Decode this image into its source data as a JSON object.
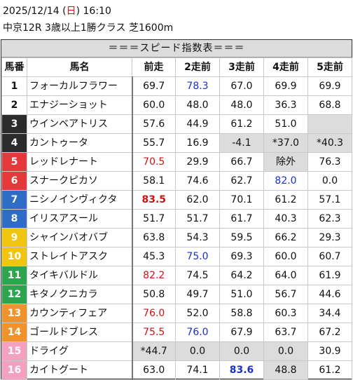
{
  "header": {
    "date_prefix": "2025/12/14 (",
    "weekday": "日",
    "date_suffix": ") 16:10",
    "race_info": "中京12R 3歳以上1勝クラス 芝1600m"
  },
  "banner": "＝＝＝スピード指数表＝＝＝",
  "columns": [
    "馬番",
    "馬名",
    "前走",
    "2走前",
    "3走前",
    "4走前",
    "5走前"
  ],
  "rows": [
    {
      "num": "1",
      "name": "フォーカルフラワー",
      "vals": [
        "69.7",
        "78.3",
        "67.0",
        "69.9",
        "69.9"
      ]
    },
    {
      "num": "2",
      "name": "エナジーショット",
      "vals": [
        "60.0",
        "48.0",
        "48.0",
        "36.3",
        "68.8"
      ]
    },
    {
      "num": "3",
      "name": "ウインベアトリス",
      "vals": [
        "57.6",
        "44.9",
        "61.2",
        "51.0",
        ""
      ]
    },
    {
      "num": "4",
      "name": "カントゥータ",
      "vals": [
        "55.7",
        "16.9",
        "-4.1",
        "*37.0",
        "*40.3"
      ]
    },
    {
      "num": "5",
      "name": "レッドレナート",
      "vals": [
        "70.5",
        "29.9",
        "66.7",
        "除外",
        "76.3"
      ]
    },
    {
      "num": "6",
      "name": "スナークピカソ",
      "vals": [
        "58.1",
        "74.6",
        "62.7",
        "82.0",
        "0.0"
      ]
    },
    {
      "num": "7",
      "name": "ニシノインヴィクタ",
      "vals": [
        "83.5",
        "62.0",
        "70.1",
        "61.2",
        "57.1"
      ]
    },
    {
      "num": "8",
      "name": "イリスアスール",
      "vals": [
        "51.7",
        "51.7",
        "61.7",
        "40.3",
        "62.3"
      ]
    },
    {
      "num": "9",
      "name": "シャインバオバブ",
      "vals": [
        "63.8",
        "54.3",
        "59.5",
        "66.2",
        "29.3"
      ]
    },
    {
      "num": "10",
      "name": "ストレイトアスク",
      "vals": [
        "45.3",
        "75.0",
        "69.3",
        "60.0",
        "60.7"
      ]
    },
    {
      "num": "11",
      "name": "タイキバルドル",
      "vals": [
        "82.2",
        "74.5",
        "64.2",
        "64.0",
        "61.9"
      ]
    },
    {
      "num": "12",
      "name": "キタノクニカラ",
      "vals": [
        "50.8",
        "49.7",
        "51.0",
        "56.7",
        "44.6"
      ]
    },
    {
      "num": "13",
      "name": "カウンティフェア",
      "vals": [
        "76.0",
        "52.0",
        "58.8",
        "60.3",
        "34.4"
      ]
    },
    {
      "num": "14",
      "name": "ゴールドブレス",
      "vals": [
        "75.5",
        "76.0",
        "67.9",
        "63.7",
        "67.2"
      ]
    },
    {
      "num": "15",
      "name": "ドライグ",
      "vals": [
        "*44.7",
        "0.0",
        "0.0",
        "0.0",
        "30.9"
      ]
    },
    {
      "num": "16",
      "name": "カイトグート",
      "vals": [
        "63.0",
        "74.1",
        "83.6",
        "48.8",
        "61.2"
      ]
    }
  ],
  "colors": {
    "text_red": "#d01010",
    "text_blue": "#1a2fd0",
    "cell_gray": "#dcdcdc"
  }
}
